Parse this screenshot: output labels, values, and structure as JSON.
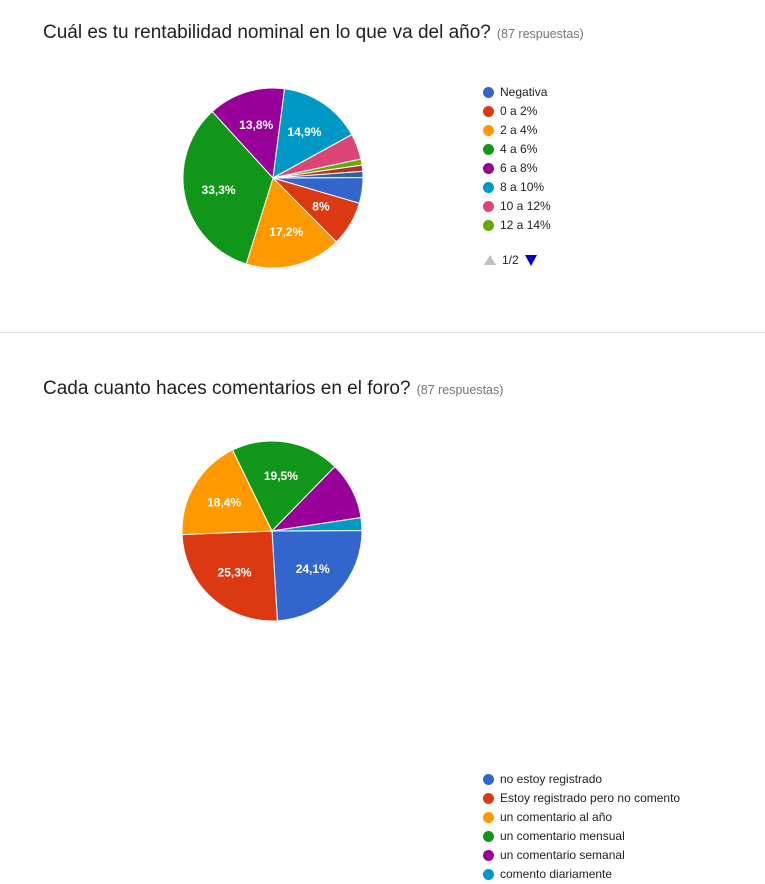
{
  "questions": [
    {
      "title": "Cuál es tu rentabilidad nominal en lo que va del año?",
      "responses": "(87 respuestas)",
      "pager": "1/2"
    },
    {
      "title": "Cada cuanto haces comentarios en el foro?",
      "responses": "(87 respuestas)"
    }
  ],
  "chart_data": [
    {
      "type": "pie",
      "title": "Cuál es tu rentabilidad nominal en lo que va del año?",
      "categories": [
        "Negativa",
        "0 a 2%",
        "2 a 4%",
        "4 a 6%",
        "6 a 8%",
        "8 a 10%",
        "10 a 12%",
        "12 a 14%",
        "",
        ""
      ],
      "values": [
        4.6,
        8,
        17.2,
        33.3,
        13.8,
        14.9,
        4.6,
        1.1,
        1.1,
        1.1
      ],
      "value_labels": [
        "",
        "8%",
        "17,2%",
        "33,3%",
        "13,8%",
        "14,9%",
        "",
        "",
        "",
        ""
      ],
      "colors": [
        "#3366cc",
        "#dc3912",
        "#ff9900",
        "#109618",
        "#990099",
        "#0099c6",
        "#dd4477",
        "#66aa00",
        "#b82e2e",
        "#316395"
      ],
      "legend_position": "right"
    },
    {
      "type": "pie",
      "title": "Cada cuanto haces comentarios en el foro?",
      "categories": [
        "no estoy registrado",
        "Estoy registrado pero no comento",
        "un comentario al año",
        "un comentario mensual",
        "un comentario semanal",
        "comento diariamente"
      ],
      "values": [
        24.1,
        25.3,
        18.4,
        19.5,
        10.3,
        2.3
      ],
      "value_labels": [
        "24,1%",
        "25,3%",
        "18,4%",
        "19,5%",
        "",
        ""
      ],
      "colors": [
        "#3366cc",
        "#dc3912",
        "#ff9900",
        "#109618",
        "#990099",
        "#0099c6"
      ],
      "legend_position": "right"
    }
  ]
}
